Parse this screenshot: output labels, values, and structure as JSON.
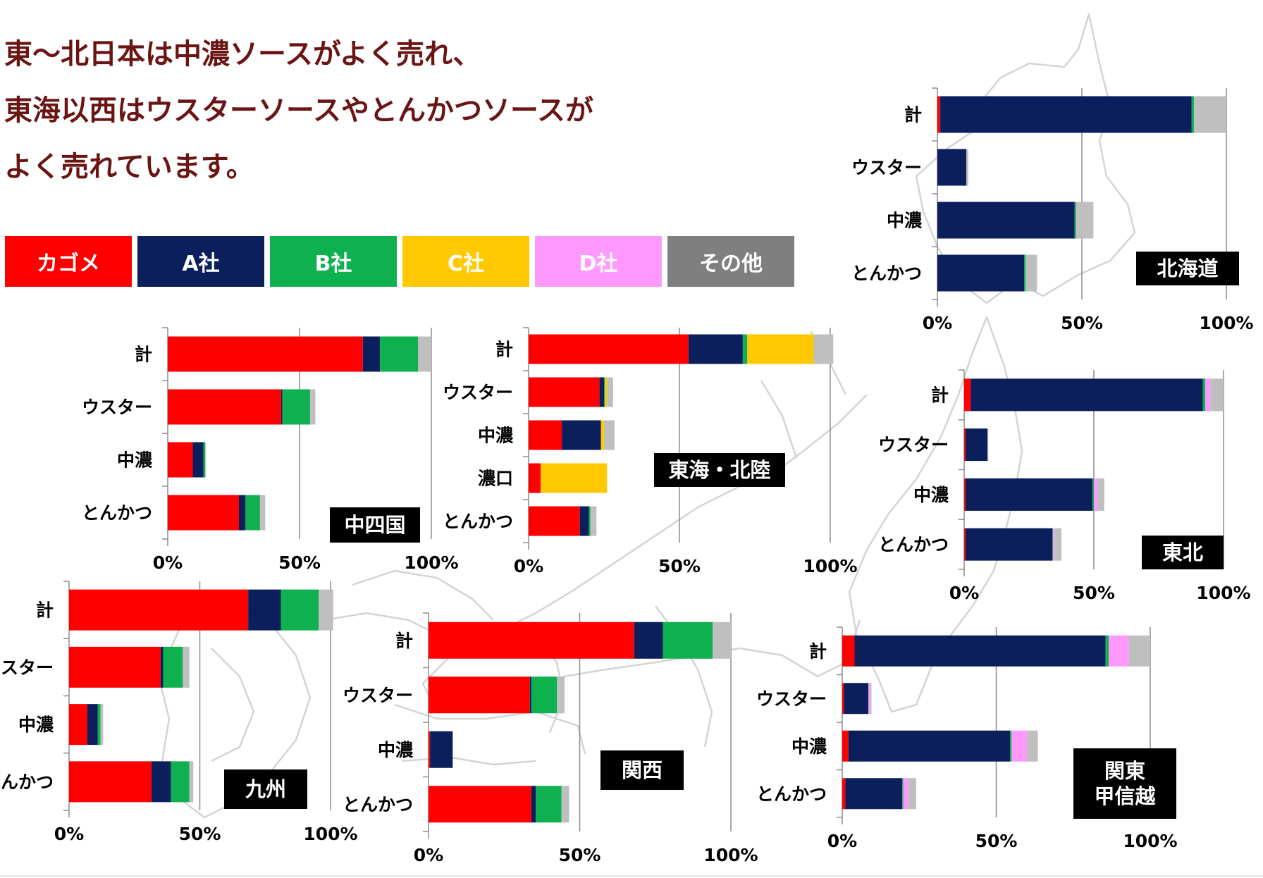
{
  "headline": [
    "東～北日本は中濃ソースがよく売れ、",
    "東海以西はウスターソースやとんかつソースが",
    "よく売れています。"
  ],
  "legend": [
    {
      "label": "カゴメ",
      "color": "#ff0000"
    },
    {
      "label": "A社",
      "color": "#0a1f5c"
    },
    {
      "label": "B社",
      "color": "#0fb04f"
    },
    {
      "label": "C社",
      "color": "#ffc800"
    },
    {
      "label": "D社",
      "color": "#ff99ff"
    },
    {
      "label": "その他",
      "color": "#7f7f7f"
    }
  ],
  "map_icon": "japan-map-outline",
  "chart_data": [
    {
      "type": "bar",
      "stacked": true,
      "orientation": "horizontal",
      "region": "北海道",
      "categories": [
        "計",
        "ウスター",
        "中濃",
        "とんかつ"
      ],
      "x_ticks": [
        "0%",
        "50%",
        "100%"
      ],
      "xlim": [
        0,
        100
      ],
      "series": [
        {
          "name": "カゴメ",
          "color": "#ff0000",
          "values": [
            1,
            0,
            0,
            0
          ]
        },
        {
          "name": "A社",
          "color": "#0a1f5c",
          "values": [
            87,
            10,
            47.5,
            30
          ]
        },
        {
          "name": "B社",
          "color": "#0fb04f",
          "values": [
            0.8,
            0,
            0.5,
            0.5
          ]
        },
        {
          "name": "C社",
          "color": "#ffc800",
          "values": [
            0,
            0,
            0,
            0
          ]
        },
        {
          "name": "D社",
          "color": "#ff99ff",
          "values": [
            0,
            0,
            0,
            0
          ]
        },
        {
          "name": "その他",
          "color": "#bfbfbf",
          "values": [
            11.2,
            0.7,
            6,
            4
          ]
        }
      ]
    },
    {
      "type": "bar",
      "stacked": true,
      "orientation": "horizontal",
      "region": "東北",
      "categories": [
        "計",
        "ウスター",
        "中濃",
        "とんかつ"
      ],
      "x_ticks": [
        "0%",
        "50%",
        "100%"
      ],
      "xlim": [
        0,
        100
      ],
      "series": [
        {
          "name": "カゴメ",
          "color": "#ff0000",
          "values": [
            2.5,
            0.5,
            0.5,
            0.5
          ]
        },
        {
          "name": "A社",
          "color": "#0a1f5c",
          "values": [
            89.5,
            8.5,
            49,
            33.5
          ]
        },
        {
          "name": "B社",
          "color": "#0fb04f",
          "values": [
            1,
            0,
            0.5,
            0.3
          ]
        },
        {
          "name": "C社",
          "color": "#ffc800",
          "values": [
            0,
            0,
            0,
            0
          ]
        },
        {
          "name": "D社",
          "color": "#ff99ff",
          "values": [
            2,
            0,
            1.5,
            0.7
          ]
        },
        {
          "name": "その他",
          "color": "#bfbfbf",
          "values": [
            5,
            0.3,
            2.5,
            2.5
          ]
        }
      ]
    },
    {
      "type": "bar",
      "stacked": true,
      "orientation": "horizontal",
      "region": "関東\n甲信越",
      "categories": [
        "計",
        "ウスター",
        "中濃",
        "とんかつ"
      ],
      "x_ticks": [
        "0%",
        "50%",
        "100%"
      ],
      "xlim": [
        0,
        100
      ],
      "series": [
        {
          "name": "カゴメ",
          "color": "#ff0000",
          "values": [
            4,
            0.5,
            2,
            1
          ]
        },
        {
          "name": "A社",
          "color": "#0a1f5c",
          "values": [
            81.5,
            8,
            52.5,
            18.5
          ]
        },
        {
          "name": "B社",
          "color": "#0fb04f",
          "values": [
            1,
            0,
            0.5,
            0.3
          ]
        },
        {
          "name": "C社",
          "color": "#ffc800",
          "values": [
            0,
            0,
            0,
            0
          ]
        },
        {
          "name": "D社",
          "color": "#ff99ff",
          "values": [
            6.5,
            0.5,
            5,
            1.7
          ]
        },
        {
          "name": "その他",
          "color": "#bfbfbf",
          "values": [
            7,
            0.5,
            3.5,
            2.5
          ]
        }
      ]
    },
    {
      "type": "bar",
      "stacked": true,
      "orientation": "horizontal",
      "region": "東海・北陸",
      "categories": [
        "計",
        "ウスター",
        "中濃",
        "濃口",
        "とんかつ"
      ],
      "x_ticks": [
        "0%",
        "50%",
        "100%"
      ],
      "xlim": [
        0,
        100
      ],
      "series": [
        {
          "name": "カゴメ",
          "color": "#ff0000",
          "values": [
            53,
            23.5,
            11,
            4,
            17
          ]
        },
        {
          "name": "A社",
          "color": "#0a1f5c",
          "values": [
            18,
            1.5,
            13,
            0,
            3
          ]
        },
        {
          "name": "B社",
          "color": "#0fb04f",
          "values": [
            1.5,
            0.3,
            0,
            0,
            0.5
          ]
        },
        {
          "name": "C社",
          "color": "#ffc800",
          "values": [
            22,
            0.7,
            1,
            22,
            0
          ]
        },
        {
          "name": "D社",
          "color": "#ff99ff",
          "values": [
            0,
            0,
            0,
            0,
            0
          ]
        },
        {
          "name": "その他",
          "color": "#bfbfbf",
          "values": [
            6.5,
            2,
            3.5,
            0,
            2
          ]
        }
      ]
    },
    {
      "type": "bar",
      "stacked": true,
      "orientation": "horizontal",
      "region": "中四国",
      "categories": [
        "計",
        "ウスター",
        "中濃",
        "とんかつ"
      ],
      "x_ticks": [
        "0%",
        "50%",
        "100%"
      ],
      "xlim": [
        0,
        100
      ],
      "series": [
        {
          "name": "カゴメ",
          "color": "#ff0000",
          "values": [
            74,
            43,
            9.5,
            27
          ]
        },
        {
          "name": "A社",
          "color": "#0a1f5c",
          "values": [
            6.5,
            0.5,
            4,
            2.5
          ]
        },
        {
          "name": "B社",
          "color": "#0fb04f",
          "values": [
            14.5,
            10.5,
            0.7,
            5.5
          ]
        },
        {
          "name": "C社",
          "color": "#ffc800",
          "values": [
            0,
            0,
            0,
            0
          ]
        },
        {
          "name": "D社",
          "color": "#ff99ff",
          "values": [
            0,
            0,
            0,
            0
          ]
        },
        {
          "name": "その他",
          "color": "#bfbfbf",
          "values": [
            5,
            2,
            0.3,
            2
          ]
        }
      ]
    },
    {
      "type": "bar",
      "stacked": true,
      "orientation": "horizontal",
      "region": "九州",
      "categories": [
        "計",
        "ウスター",
        "中濃",
        "とんかつ"
      ],
      "x_ticks": [
        "0%",
        "50%",
        "100%"
      ],
      "xlim": [
        0,
        100
      ],
      "series": [
        {
          "name": "カゴメ",
          "color": "#ff0000",
          "values": [
            68.5,
            35,
            7,
            31.5
          ]
        },
        {
          "name": "A社",
          "color": "#0a1f5c",
          "values": [
            12.5,
            1,
            4,
            7.5
          ]
        },
        {
          "name": "B社",
          "color": "#0fb04f",
          "values": [
            14.5,
            7.5,
            1,
            7
          ]
        },
        {
          "name": "C社",
          "color": "#ffc800",
          "values": [
            0,
            0,
            0,
            0
          ]
        },
        {
          "name": "D社",
          "color": "#ff99ff",
          "values": [
            0,
            0,
            0,
            0
          ]
        },
        {
          "name": "その他",
          "color": "#bfbfbf",
          "values": [
            5.5,
            2.5,
            1,
            1.5
          ]
        }
      ]
    },
    {
      "type": "bar",
      "stacked": true,
      "orientation": "horizontal",
      "region": "関西",
      "categories": [
        "計",
        "ウスター",
        "中濃",
        "とんかつ"
      ],
      "x_ticks": [
        "0%",
        "50%",
        "100%"
      ],
      "xlim": [
        0,
        100
      ],
      "series": [
        {
          "name": "カゴメ",
          "color": "#ff0000",
          "values": [
            68,
            33.5,
            0.5,
            34
          ]
        },
        {
          "name": "A社",
          "color": "#0a1f5c",
          "values": [
            9.5,
            0.5,
            7.5,
            1.5
          ]
        },
        {
          "name": "B社",
          "color": "#0fb04f",
          "values": [
            16.5,
            8.5,
            0,
            8.5
          ]
        },
        {
          "name": "C社",
          "color": "#ffc800",
          "values": [
            0,
            0,
            0,
            0
          ]
        },
        {
          "name": "D社",
          "color": "#ff99ff",
          "values": [
            0,
            0,
            0,
            0
          ]
        },
        {
          "name": "その他",
          "color": "#bfbfbf",
          "values": [
            6,
            2.5,
            0,
            2.5
          ]
        }
      ]
    }
  ]
}
